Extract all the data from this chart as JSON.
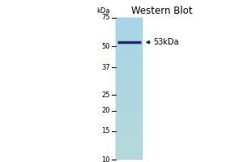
{
  "title": "Western Blot",
  "background_color": "#f0f0f0",
  "gel_color": "#a8d4e8",
  "band_color": "#2a2a6a",
  "band_linewidth": 2.5,
  "arrow_label": "←53kDa",
  "arrow_fontsize": 7,
  "kda_label": "kDa",
  "ladder_fontsize": 6,
  "title_fontsize": 8.5,
  "ladder_marks": [
    {
      "label": "75",
      "kda": 75
    },
    {
      "label": "50",
      "kda": 50
    },
    {
      "label": "37",
      "kda": 37
    },
    {
      "label": "25",
      "kda": 25
    },
    {
      "label": "20",
      "kda": 20
    },
    {
      "label": "15",
      "kda": 15
    },
    {
      "label": "10",
      "kda": 10
    }
  ],
  "band_kda": 53,
  "kda_min": 10,
  "kda_max": 75
}
